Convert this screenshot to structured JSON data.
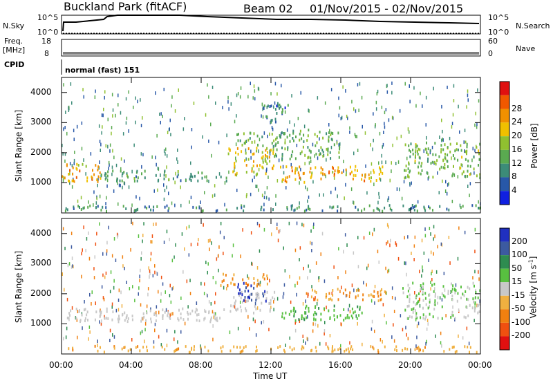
{
  "header": {
    "station": "Buckland Park (fitACF)",
    "beam": "Beam 02",
    "date_range": "01/Nov/2015 - 02/Nov/2015"
  },
  "top_panels": {
    "nsky_label": "N.Sky",
    "nsky_hi": "10^5",
    "nsky_lo": "10^0",
    "nsearch_label": "N.Search",
    "nsearch_hi": "10^5",
    "nsearch_lo": "10^0",
    "freq_label_1": "Freq.",
    "freq_label_2": "[MHz]",
    "freq_hi": "18",
    "freq_lo": "8",
    "nave_label": "Nave",
    "nave_hi": "60",
    "nave_lo": "0",
    "cpid_label": "CPID",
    "cpid_text": "normal (fast) 151"
  },
  "chart_data": [
    {
      "type": "heatmap",
      "name": "power",
      "ylabel": "Slant Range [km]",
      "xlabel": "Time UT",
      "x_ticks": [
        "00:00",
        "04:00",
        "08:00",
        "12:00",
        "16:00",
        "20:00",
        "00:00"
      ],
      "y_ticks": [
        1000,
        2000,
        3000,
        4000
      ],
      "ylim": [
        0,
        4500
      ],
      "xlim_hours": [
        0,
        24
      ],
      "colorbar_label": "Power [dB]",
      "colorbar_ticks": [
        4,
        8,
        12,
        16,
        20,
        24,
        28
      ],
      "colorbar_colors": [
        "#1020e0",
        "#2858a8",
        "#3c8c78",
        "#5aaa50",
        "#90c030",
        "#f0c000",
        "#f09000",
        "#f05800",
        "#e01010"
      ],
      "regions": [
        {
          "t0": 0.0,
          "t1": 2.2,
          "r0": 1050,
          "r1": 1700,
          "level": 24
        },
        {
          "t0": 2.2,
          "t1": 9.5,
          "r0": 1100,
          "r1": 1450,
          "level": 12
        },
        {
          "t0": 9.5,
          "t1": 12.2,
          "r0": 1300,
          "r1": 2200,
          "level": 22
        },
        {
          "t0": 10.0,
          "t1": 11.5,
          "r0": 2200,
          "r1": 2700,
          "level": 14
        },
        {
          "t0": 12.5,
          "t1": 18.5,
          "r0": 1050,
          "r1": 1600,
          "level": 24
        },
        {
          "t0": 12.0,
          "t1": 16.0,
          "r0": 1800,
          "r1": 2800,
          "level": 14
        },
        {
          "t0": 11.5,
          "t1": 13.0,
          "r0": 3000,
          "r1": 3700,
          "level": 8
        },
        {
          "t0": 19.5,
          "t1": 24.0,
          "r0": 1200,
          "r1": 2400,
          "level": 16
        },
        {
          "t0": 0.0,
          "t1": 24.0,
          "r0": 100,
          "r1": 300,
          "level": 10
        }
      ]
    },
    {
      "type": "heatmap",
      "name": "velocity",
      "ylabel": "Slant Range [km]",
      "xlabel": "Time UT",
      "x_ticks": [
        "00:00",
        "04:00",
        "08:00",
        "12:00",
        "16:00",
        "20:00",
        "00:00"
      ],
      "y_ticks": [
        1000,
        2000,
        3000,
        4000
      ],
      "ylim": [
        0,
        4500
      ],
      "xlim_hours": [
        0,
        24
      ],
      "colorbar_label": "Velocity [m s^-1]",
      "colorbar_ticks": [
        200,
        100,
        50,
        15,
        -15,
        -50,
        -100,
        -200
      ],
      "colorbar_colors": [
        "#2030c0",
        "#3c5aa0",
        "#2e8c50",
        "#58c040",
        "#c8c8c8",
        "#f0b040",
        "#f08010",
        "#f05010",
        "#e01010"
      ],
      "regions": [
        {
          "t0": 0.0,
          "t1": 9.5,
          "r0": 1100,
          "r1": 1550,
          "level": 0
        },
        {
          "t0": 9.5,
          "t1": 12.2,
          "r0": 1400,
          "r1": 2100,
          "level": 0
        },
        {
          "t0": 10.0,
          "t1": 11.7,
          "r0": 1800,
          "r1": 2400,
          "level": 200
        },
        {
          "t0": 12.5,
          "t1": 17.5,
          "r0": 1150,
          "r1": 1650,
          "level": 40
        },
        {
          "t0": 14.0,
          "t1": 18.5,
          "r0": 1800,
          "r1": 2200,
          "level": -50
        },
        {
          "t0": 9.0,
          "t1": 12.0,
          "r0": 2300,
          "r1": 2700,
          "level": -50
        },
        {
          "t0": 19.5,
          "t1": 24.0,
          "r0": 1200,
          "r1": 2400,
          "level": 15
        },
        {
          "t0": 0.0,
          "t1": 24.0,
          "r0": 100,
          "r1": 300,
          "level": -40
        }
      ]
    }
  ]
}
